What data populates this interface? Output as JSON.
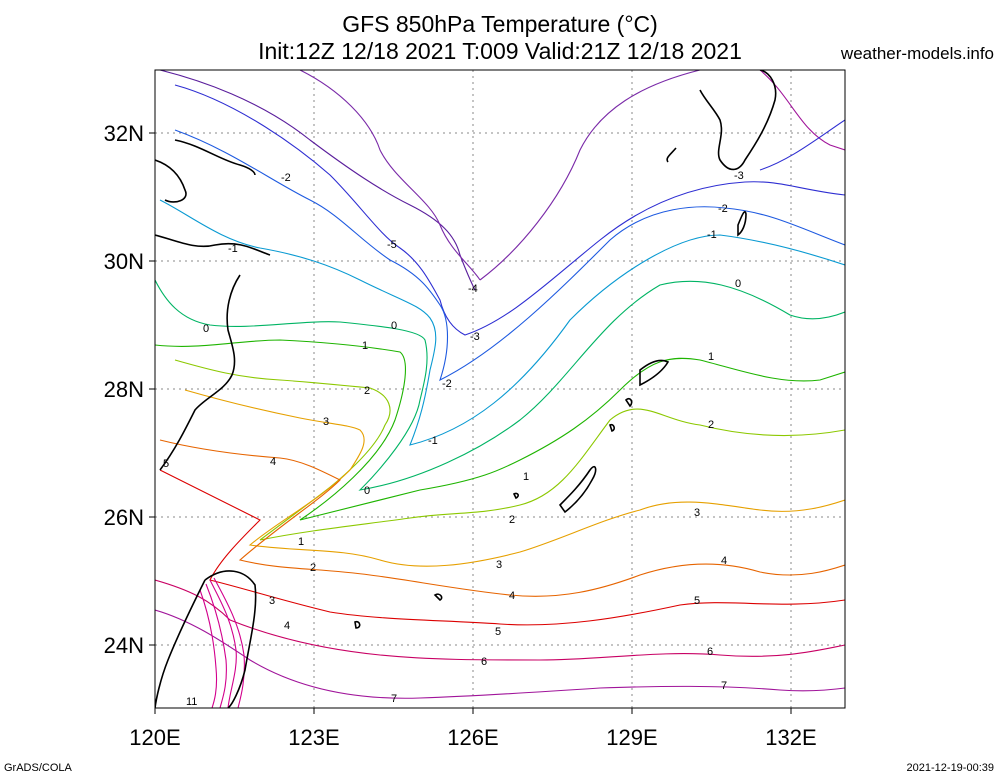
{
  "header": {
    "title_line1": "GFS 850hPa Temperature (°C)",
    "title_line2": "Init:12Z 12/18 2021 T:009 Valid:21Z 12/18 2021",
    "site": "weather-models.info"
  },
  "footer": {
    "credit": "GrADS/COLA",
    "timestamp": "2021-12-19-00:39"
  },
  "map": {
    "lon_range": [
      120,
      133
    ],
    "lat_range": [
      23,
      33
    ],
    "x_ticks": [
      "120E",
      "123E",
      "126E",
      "129E",
      "132E"
    ],
    "y_ticks": [
      "24N",
      "26N",
      "28N",
      "30N",
      "32N"
    ],
    "grid": true,
    "contour_labels": [
      "-5",
      "-4",
      "-3",
      "-3",
      "-2",
      "-2",
      "-2",
      "-1",
      "-1",
      "-1",
      "0",
      "0",
      "0",
      "0",
      "1",
      "1",
      "1",
      "1",
      "2",
      "2",
      "2",
      "2",
      "3",
      "3",
      "3",
      "3",
      "4",
      "4",
      "4",
      "4",
      "5",
      "5",
      "5",
      "6",
      "6",
      "7",
      "7",
      "11"
    ],
    "colors": {
      "coast": "#000000",
      "m5": "#5a1e9c",
      "m4": "#7a2aa8",
      "m3": "#2e2ed2",
      "m2": "#1e5ae0",
      "m1": "#0a9ad2",
      "z0": "#00b464",
      "p1": "#1eb400",
      "p2": "#8cc800",
      "p3": "#e6a000",
      "p4": "#e66400",
      "p5": "#dc0000",
      "p6": "#c80064",
      "p7": "#a0149a",
      "warm": "#d2008c"
    }
  }
}
